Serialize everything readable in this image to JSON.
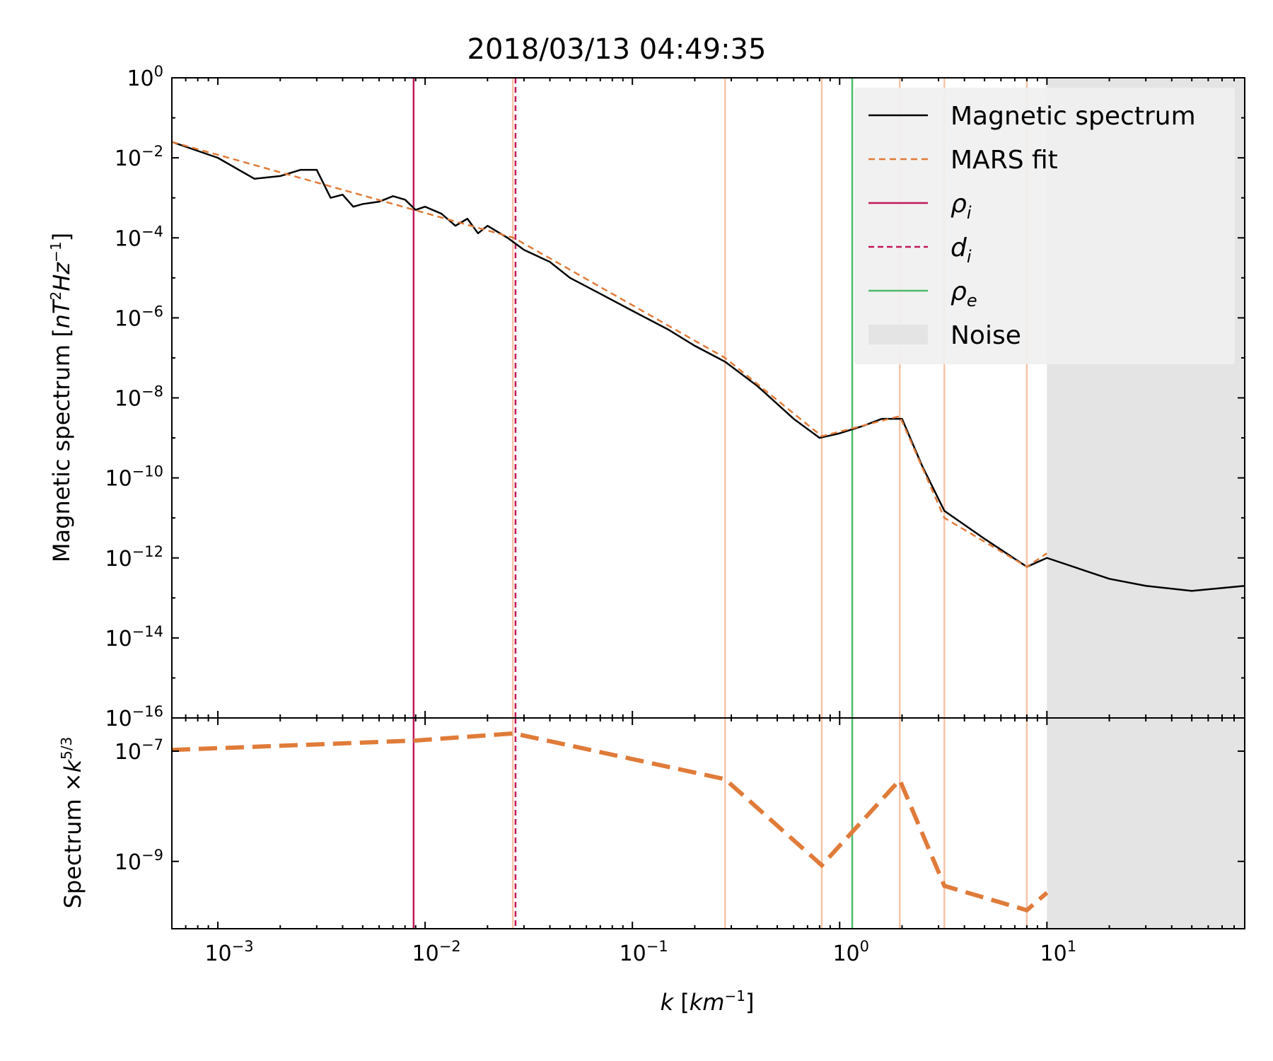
{
  "chart_data": [
    {
      "panel": "top",
      "type": "line",
      "title": "2018/03/13 04:49:35",
      "xlabel_var": "k",
      "xlabel_unit": "km",
      "xlabel_exp": "−1",
      "ylabel_main": "Magnetic spectrum",
      "ylabel_unit_a": "nT",
      "ylabel_unit_b": "Hz",
      "x_scale": "log",
      "y_scale": "log",
      "xlim": [
        0.0006,
        90
      ],
      "ylim": [
        1e-16,
        1
      ],
      "y_tick_exponents": [
        "0",
        "−2",
        "−4",
        "−6",
        "−8",
        "−10",
        "−12",
        "−14",
        "−16"
      ],
      "legend_position": "top-right",
      "legend": [
        "Magnetic spectrum",
        "MARS fit",
        "ρi",
        "di",
        "ρe",
        "Noise"
      ],
      "series": [
        {
          "name": "Magnetic spectrum",
          "color": "#000000",
          "x": [
            0.0006,
            0.001,
            0.0015,
            0.002,
            0.0025,
            0.003,
            0.0035,
            0.004,
            0.0045,
            0.005,
            0.006,
            0.007,
            0.008,
            0.009,
            0.01,
            0.012,
            0.014,
            0.016,
            0.018,
            0.02,
            0.025,
            0.03,
            0.04,
            0.05,
            0.07,
            0.1,
            0.15,
            0.2,
            0.28,
            0.4,
            0.6,
            0.8,
            1.0,
            1.3,
            1.6,
            2.0,
            2.5,
            3.2,
            5,
            8,
            10,
            20,
            30,
            50,
            90
          ],
          "y": [
            0.025,
            0.01,
            0.003,
            0.0035,
            0.005,
            0.005,
            0.001,
            0.0012,
            0.0006,
            0.0007,
            0.0008,
            0.0011,
            0.0009,
            0.0005,
            0.0006,
            0.0004,
            0.0002,
            0.0003,
            0.00013,
            0.0002,
            0.0001,
            5e-05,
            2.5e-05,
            1e-05,
            4e-06,
            1.5e-06,
            5e-07,
            2e-07,
            8e-08,
            2e-08,
            3e-09,
            1e-09,
            1.3e-09,
            2e-09,
            3e-09,
            3e-09,
            2e-10,
            1.5e-11,
            3e-12,
            6e-13,
            1e-12,
            3e-13,
            2e-13,
            1.5e-13,
            2e-13
          ]
        },
        {
          "name": "MARS fit",
          "color": "#E07B39",
          "x": [
            0.0006,
            0.0268,
            0.28,
            0.82,
            1.95,
            3.2,
            8.0,
            10.0
          ],
          "y": [
            0.025,
            0.0001,
            1e-07,
            1.1e-09,
            3.5e-09,
            1e-11,
            6e-13,
            1.3e-12
          ]
        }
      ],
      "reference_lines": [
        {
          "name": "ρi",
          "x": 0.0088,
          "color": "#C2185B",
          "style": "solid"
        },
        {
          "name": "di",
          "x": 0.0273,
          "color": "#C2185B",
          "style": "dashed"
        },
        {
          "name": "ρe",
          "x": 1.15,
          "color": "#4CBB6C",
          "style": "solid"
        }
      ],
      "breakpoints": {
        "x": [
          0.0265,
          0.28,
          0.82,
          1.95,
          3.2,
          8.0
        ],
        "color": "#F5C3A8"
      },
      "noise_region": {
        "name": "Noise",
        "x_start": 10,
        "x_end": 90,
        "color": "#E4E4E4"
      }
    },
    {
      "panel": "bottom",
      "type": "line",
      "ylabel_main": "Spectrum",
      "ylabel_mul": "×",
      "ylabel_var": "k",
      "ylabel_exp": "5/3",
      "x_scale": "log",
      "y_scale": "log",
      "ylim": [
        6e-11,
        4e-07
      ],
      "y_tick_exponents": [
        "−7",
        "−9"
      ],
      "x_tick_exponents": [
        "−3",
        "−2",
        "−1",
        "0",
        "1"
      ],
      "series": [
        {
          "name": "MARS fit",
          "color": "#E07B39",
          "x": [
            0.0006,
            0.0088,
            0.0268,
            0.28,
            0.82,
            1.95,
            3.2,
            8.0,
            10.0
          ],
          "y": [
            1.05e-07,
            1.55e-07,
            2.1e-07,
            3.1e-08,
            8.5e-10,
            3e-08,
            3.6e-10,
            1.3e-10,
            2.7e-10
          ]
        }
      ]
    }
  ]
}
